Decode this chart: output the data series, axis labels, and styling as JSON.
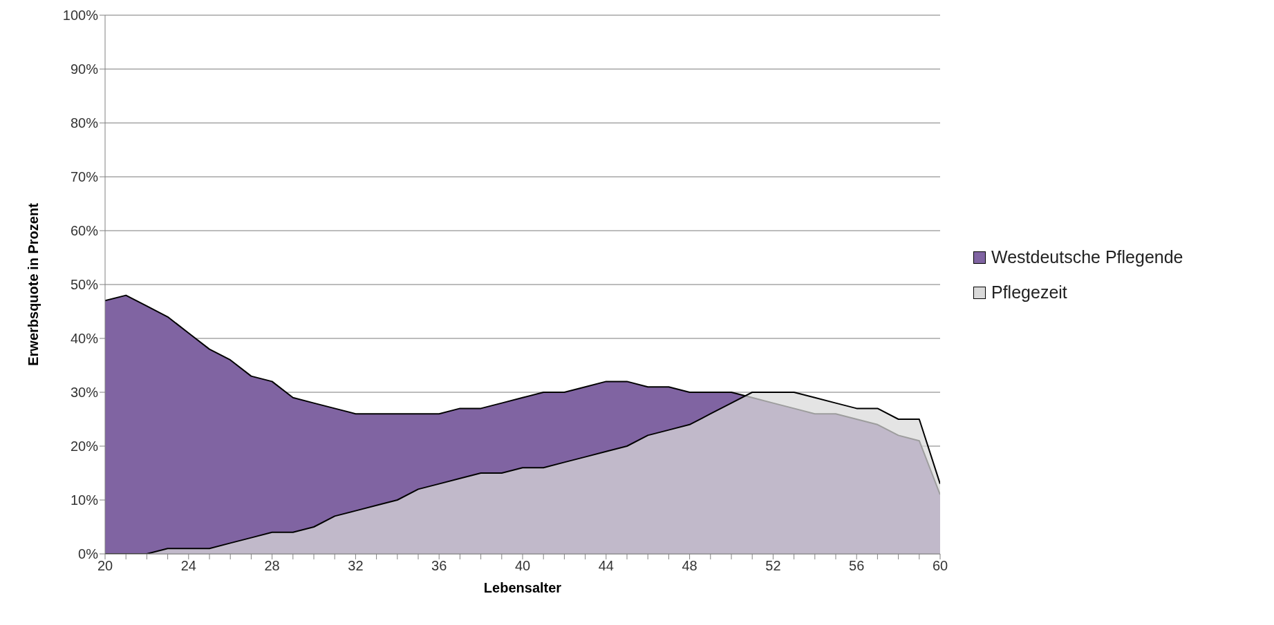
{
  "chart_data": {
    "type": "area",
    "xlabel": "Lebensalter",
    "ylabel": "Erwerbsquote in Prozent",
    "x": [
      20,
      21,
      22,
      23,
      24,
      25,
      26,
      27,
      28,
      29,
      30,
      31,
      32,
      33,
      34,
      35,
      36,
      37,
      38,
      39,
      40,
      41,
      42,
      43,
      44,
      45,
      46,
      47,
      48,
      49,
      50,
      51,
      52,
      53,
      54,
      55,
      56,
      57,
      58,
      59,
      60
    ],
    "series": [
      {
        "name": "Westdeutsche Pflegende",
        "color": "#8064a2",
        "values": [
          47,
          48,
          46,
          44,
          41,
          38,
          36,
          33,
          32,
          29,
          28,
          27,
          26,
          26,
          26,
          26,
          26,
          27,
          27,
          28,
          29,
          30,
          30,
          31,
          32,
          32,
          31,
          31,
          30,
          30,
          30,
          29,
          28,
          27,
          26,
          26,
          25,
          24,
          22,
          21,
          11
        ]
      },
      {
        "name": "Pflegezeit",
        "color": "#d9d9d9",
        "values": [
          0,
          0,
          0,
          1,
          1,
          1,
          2,
          3,
          4,
          4,
          5,
          7,
          8,
          9,
          10,
          12,
          13,
          14,
          15,
          15,
          16,
          16,
          17,
          18,
          19,
          20,
          22,
          23,
          24,
          26,
          28,
          30,
          30,
          30,
          29,
          28,
          27,
          27,
          25,
          25,
          13
        ]
      }
    ],
    "xlim": [
      20,
      60
    ],
    "xticks": [
      20,
      {
        "value": 21,
        "label": null
      },
      {
        "value": 22,
        "label": null
      },
      {
        "value": 23,
        "label": null
      },
      24,
      {
        "value": 25,
        "label": null
      },
      {
        "value": 26,
        "label": null
      },
      {
        "value": 27,
        "label": null
      },
      28,
      {
        "value": 29,
        "label": null
      },
      {
        "value": 30,
        "label": null
      },
      {
        "value": 31,
        "label": null
      },
      32,
      {
        "value": 33,
        "label": null
      },
      {
        "value": 34,
        "label": null
      },
      {
        "value": 35,
        "label": null
      },
      36,
      {
        "value": 37,
        "label": null
      },
      {
        "value": 38,
        "label": null
      },
      {
        "value": 39,
        "label": null
      },
      40,
      {
        "value": 41,
        "label": null
      },
      {
        "value": 42,
        "label": null
      },
      {
        "value": 43,
        "label": null
      },
      44,
      {
        "value": 45,
        "label": null
      },
      {
        "value": 46,
        "label": null
      },
      {
        "value": 47,
        "label": null
      },
      48,
      {
        "value": 49,
        "label": null
      },
      {
        "value": 50,
        "label": null
      },
      {
        "value": 51,
        "label": null
      },
      52,
      {
        "value": 53,
        "label": null
      },
      {
        "value": 54,
        "label": null
      },
      {
        "value": 55,
        "label": null
      },
      56,
      {
        "value": 57,
        "label": null
      },
      {
        "value": 58,
        "label": null
      },
      {
        "value": 59,
        "label": null
      },
      60
    ],
    "ylim": [
      0,
      100
    ],
    "yticks": [
      {
        "value": 0,
        "label": "0%"
      },
      {
        "value": 10,
        "label": "10%"
      },
      {
        "value": 20,
        "label": "20%"
      },
      {
        "value": 30,
        "label": "30%"
      },
      {
        "value": 40,
        "label": "40%"
      },
      {
        "value": 50,
        "label": "50%"
      },
      {
        "value": 60,
        "label": "60%"
      },
      {
        "value": 70,
        "label": "70%"
      },
      {
        "value": 80,
        "label": "80%"
      },
      {
        "value": 90,
        "label": "90%"
      },
      {
        "value": 100,
        "label": "100%"
      }
    ],
    "grid": "y",
    "legend": "right"
  }
}
